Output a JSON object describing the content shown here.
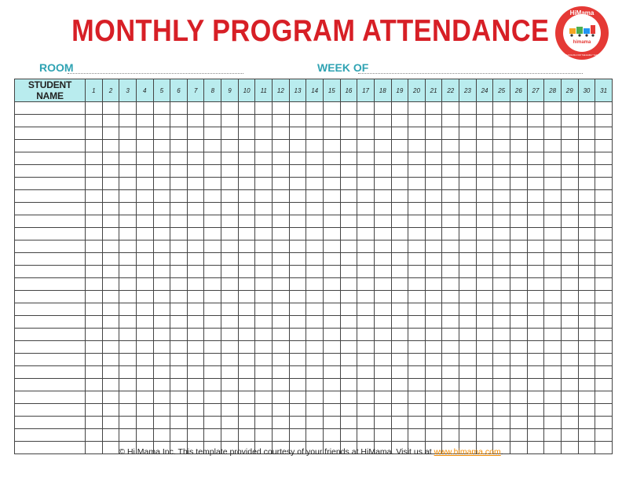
{
  "header": {
    "title": "MONTHLY PROGRAM ATTENDANCE"
  },
  "logo": {
    "brand": "HiMama",
    "wordmark": "himama",
    "tagline": "SCHOOLING FOR THE EARLY YEARS",
    "icon": "toy-train-icon",
    "colors": {
      "ring": "#e53935",
      "center": "#ffffff"
    }
  },
  "fields": {
    "room_label": "ROOM",
    "week_label": "WEEK OF"
  },
  "table": {
    "name_header": "STUDENT NAME",
    "days": [
      "1",
      "2",
      "3",
      "4",
      "5",
      "6",
      "7",
      "8",
      "9",
      "10",
      "11",
      "12",
      "13",
      "14",
      "15",
      "16",
      "17",
      "18",
      "19",
      "20",
      "21",
      "22",
      "23",
      "24",
      "25",
      "26",
      "27",
      "28",
      "29",
      "30",
      "31"
    ],
    "row_count": 28
  },
  "footer": {
    "text_prefix": "© Hi Mama Inc.  This template provided courtesy of your friends at HiMama. Visit us at ",
    "link_text": "www.himama.com",
    "text_suffix": "."
  },
  "colors": {
    "title": "#d71f26",
    "field_label": "#2fa3b3",
    "header_fill": "#b9ecee",
    "link": "#f08a00"
  }
}
